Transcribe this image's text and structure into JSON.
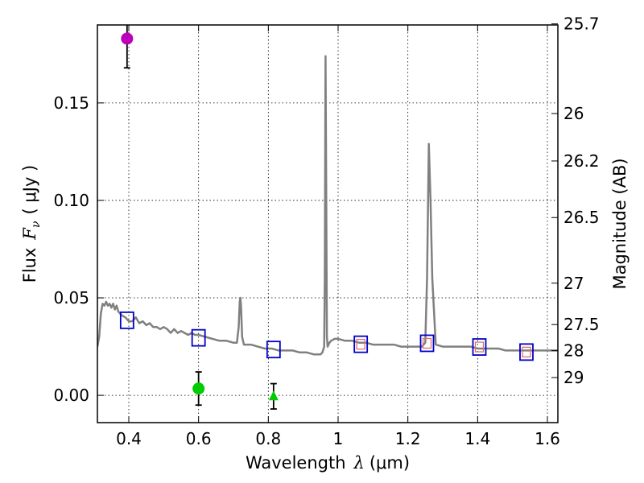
{
  "chart_data": {
    "type": "scatter",
    "title": "",
    "xlabel": {
      "prefix": "Wavelength",
      "symbol": "λ",
      "unit": "(μm)"
    },
    "ylabel": {
      "prefix": "Flux",
      "symbol": "F",
      "subscript": "ν",
      "unit": "( μJy )"
    },
    "y2label": "Magnitude (AB)",
    "xlim": [
      0.31,
      1.63
    ],
    "ylim": [
      -0.014,
      0.19
    ],
    "grid": true,
    "x_ticks": [
      "0.4",
      "0.6",
      "0.8",
      "1",
      "1.2",
      "1.4",
      "1.6"
    ],
    "x_tick_values": [
      0.4,
      0.6,
      0.8,
      1.0,
      1.2,
      1.4,
      1.6
    ],
    "y_ticks": [
      "0.00",
      "0.05",
      "0.10",
      "0.15"
    ],
    "y_tick_values": [
      0.0,
      0.05,
      0.1,
      0.15
    ],
    "mag_ticks": [
      "25.7",
      "26",
      "26.2",
      "26.5",
      "27",
      "27.5",
      "28",
      "29"
    ],
    "mag_tick_values": [
      25.7,
      26.0,
      26.2,
      26.5,
      27.0,
      27.5,
      28.0,
      29.0
    ],
    "series": [
      {
        "name": "model-spectrum",
        "kind": "line",
        "color": "#808080",
        "x": [
          0.31,
          0.315,
          0.32,
          0.325,
          0.33,
          0.335,
          0.34,
          0.345,
          0.35,
          0.355,
          0.36,
          0.365,
          0.37,
          0.38,
          0.39,
          0.4,
          0.41,
          0.42,
          0.43,
          0.44,
          0.45,
          0.46,
          0.47,
          0.48,
          0.49,
          0.5,
          0.51,
          0.52,
          0.53,
          0.54,
          0.55,
          0.56,
          0.57,
          0.58,
          0.59,
          0.6,
          0.62,
          0.64,
          0.66,
          0.68,
          0.7,
          0.71,
          0.715,
          0.718,
          0.72,
          0.722,
          0.725,
          0.73,
          0.75,
          0.77,
          0.79,
          0.81,
          0.83,
          0.85,
          0.87,
          0.89,
          0.91,
          0.93,
          0.95,
          0.955,
          0.96,
          0.962,
          0.964,
          0.966,
          0.968,
          0.97,
          0.975,
          0.98,
          0.99,
          1.0,
          1.02,
          1.04,
          1.06,
          1.08,
          1.1,
          1.12,
          1.14,
          1.16,
          1.18,
          1.2,
          1.22,
          1.24,
          1.25,
          1.255,
          1.26,
          1.265,
          1.27,
          1.28,
          1.3,
          1.32,
          1.34,
          1.36,
          1.38,
          1.4,
          1.42,
          1.44,
          1.46,
          1.48,
          1.5,
          1.52,
          1.54,
          1.56,
          1.58,
          1.6,
          1.63
        ],
        "y": [
          0.025,
          0.03,
          0.042,
          0.047,
          0.046,
          0.048,
          0.046,
          0.047,
          0.045,
          0.047,
          0.044,
          0.046,
          0.043,
          0.041,
          0.04,
          0.038,
          0.038,
          0.04,
          0.037,
          0.038,
          0.036,
          0.037,
          0.035,
          0.035,
          0.034,
          0.035,
          0.034,
          0.032,
          0.034,
          0.032,
          0.033,
          0.032,
          0.031,
          0.032,
          0.031,
          0.031,
          0.03,
          0.029,
          0.028,
          0.028,
          0.027,
          0.027,
          0.035,
          0.048,
          0.05,
          0.045,
          0.03,
          0.026,
          0.026,
          0.025,
          0.024,
          0.024,
          0.023,
          0.023,
          0.023,
          0.022,
          0.022,
          0.021,
          0.021,
          0.022,
          0.025,
          0.06,
          0.174,
          0.1,
          0.03,
          0.025,
          0.027,
          0.028,
          0.029,
          0.029,
          0.028,
          0.028,
          0.027,
          0.027,
          0.026,
          0.026,
          0.026,
          0.026,
          0.025,
          0.025,
          0.025,
          0.025,
          0.027,
          0.06,
          0.129,
          0.1,
          0.06,
          0.026,
          0.025,
          0.025,
          0.025,
          0.025,
          0.025,
          0.024,
          0.024,
          0.024,
          0.024,
          0.023,
          0.023,
          0.023,
          0.023,
          0.023,
          0.023,
          0.023,
          0.023
        ]
      },
      {
        "name": "model-bandpass-flux",
        "kind": "open-square",
        "color": "#0000cc",
        "x": [
          0.395,
          0.6,
          0.815,
          1.065,
          1.255,
          1.405,
          1.54
        ],
        "y": [
          0.0385,
          0.0295,
          0.0235,
          0.0262,
          0.0267,
          0.0248,
          0.0222
        ]
      },
      {
        "name": "observed-bandpass-flux",
        "kind": "small-square",
        "color": "#e07070",
        "x": [
          1.065,
          1.255,
          1.405,
          1.54
        ],
        "y": [
          0.0262,
          0.0267,
          0.0248,
          0.0222
        ]
      },
      {
        "name": "observed-purple",
        "kind": "circle",
        "color": "#bb00bb",
        "x": [
          0.395
        ],
        "y": [
          0.183
        ],
        "yerr": [
          0.015
        ]
      },
      {
        "name": "observed-green",
        "kind": "circle",
        "color": "#00cc00",
        "x": [
          0.6
        ],
        "y": [
          0.0035
        ],
        "yerr": [
          0.0085
        ]
      },
      {
        "name": "observed-green-limit",
        "kind": "triangle",
        "color": "#00cc00",
        "x": [
          0.815
        ],
        "y": [
          -0.0005
        ],
        "yerr": [
          0.0065
        ]
      }
    ]
  }
}
